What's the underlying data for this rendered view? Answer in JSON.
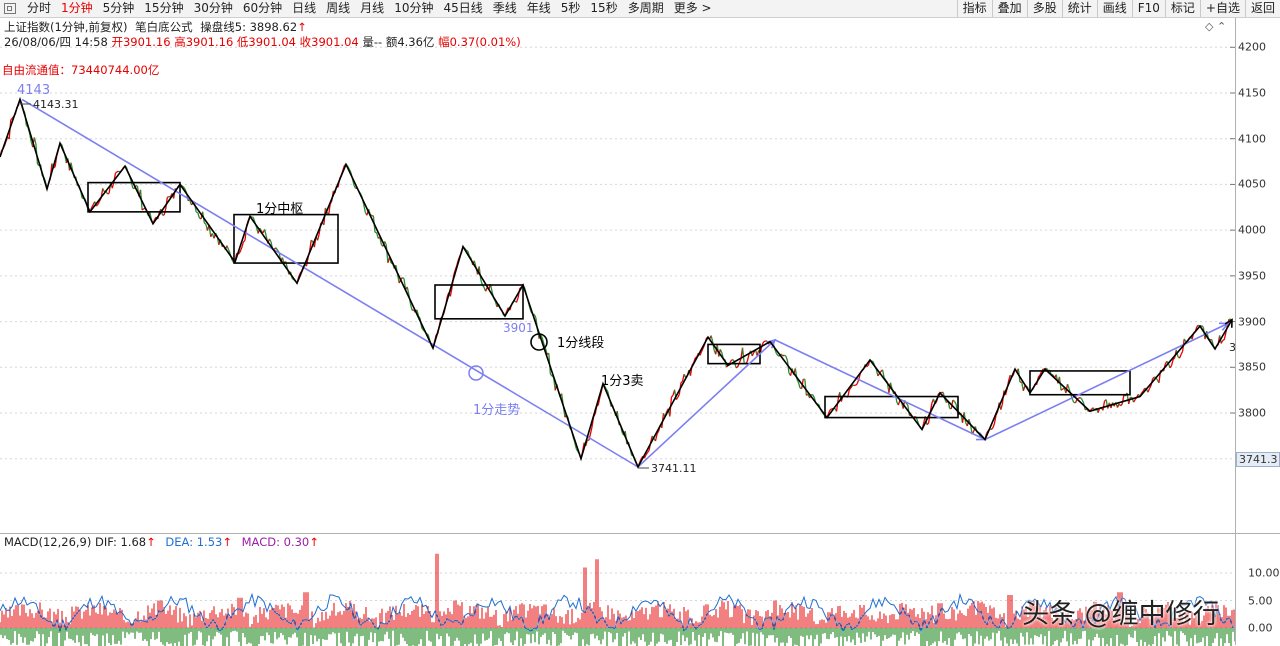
{
  "toolbar": {
    "period_tabs": [
      {
        "label": "分时"
      },
      {
        "label": "1分钟",
        "active": true
      },
      {
        "label": "5分钟"
      },
      {
        "label": "15分钟"
      },
      {
        "label": "30分钟"
      },
      {
        "label": "60分钟"
      },
      {
        "label": "日线"
      },
      {
        "label": "周线"
      },
      {
        "label": "月线"
      },
      {
        "label": "10分钟"
      },
      {
        "label": "45日线"
      },
      {
        "label": "季线"
      },
      {
        "label": "年线"
      },
      {
        "label": "5秒"
      },
      {
        "label": "15秒"
      },
      {
        "label": "多周期"
      },
      {
        "label": "更多 >"
      }
    ],
    "right_tools": [
      {
        "label": "指标"
      },
      {
        "label": "叠加"
      },
      {
        "label": "多股"
      },
      {
        "label": "统计"
      },
      {
        "label": "画线"
      },
      {
        "label": "F10"
      },
      {
        "label": "标记"
      },
      {
        "label": "+自选"
      },
      {
        "label": "返回"
      }
    ]
  },
  "header": {
    "symbol": "上证指数(1分钟,前复权)",
    "indicator": "笔白底公式",
    "ma5_label": "操盘线5: 3898.62",
    "ma5_arrow": "↑",
    "datetime": "26/08/06/四 14:58",
    "open_label": "开",
    "open": "3901.16",
    "high_label": "高",
    "high": "3901.16",
    "low_label": "低",
    "low": "3901.04",
    "close_label": "收",
    "close": "3901.04",
    "volume": "量--",
    "amount": "额4.36亿",
    "change_label": "幅",
    "change": "0.37(0.01%)",
    "float_value": "自由流通值：73440744.00亿",
    "corner_icons": "◇ ⌃"
  },
  "price_axis": {
    "ticks": [
      "4200",
      "4150",
      "4100",
      "4050",
      "4000",
      "3950",
      "3900",
      "3850",
      "3800"
    ],
    "current_price": "3741.3"
  },
  "annotations": {
    "high_label_blue": "4143",
    "high_label": "4143.31",
    "low_label": "3741.11",
    "label_3901": "3901",
    "label_zhongshu": "1分中枢",
    "label_xianduan": "1分线段",
    "label_3mai": "1分3卖",
    "label_zoushi": "1分走势",
    "label_right_edge": "3"
  },
  "macd": {
    "title": "MACD(12,26,9)",
    "dif": "DIF: 1.68",
    "dea": "DEA: 1.53",
    "macd": "MACD: 0.30",
    "arrow": "↑",
    "ticks": [
      "10.00",
      "5.00",
      "0.00"
    ]
  },
  "watermark": "头条 @缠中修行",
  "colors": {
    "up": "#e60000",
    "down": "#007a00",
    "trend_line": "#7b7ff0",
    "dea_line": "#1f6fd0",
    "stroke_line": "#000000",
    "macd_purple": "#9a1fa5"
  },
  "chart_data": {
    "type": "candlestick-line",
    "ylim": [
      3720,
      4215
    ],
    "stroke_points": [
      {
        "x": 0,
        "y": 4080
      },
      {
        "x": 20,
        "y": 4143
      },
      {
        "x": 47,
        "y": 4045
      },
      {
        "x": 60,
        "y": 4095
      },
      {
        "x": 90,
        "y": 4020
      },
      {
        "x": 125,
        "y": 4070
      },
      {
        "x": 153,
        "y": 4007
      },
      {
        "x": 180,
        "y": 4050
      },
      {
        "x": 235,
        "y": 3965
      },
      {
        "x": 250,
        "y": 4015
      },
      {
        "x": 297,
        "y": 3942
      },
      {
        "x": 346,
        "y": 4072
      },
      {
        "x": 433,
        "y": 3871
      },
      {
        "x": 463,
        "y": 3982
      },
      {
        "x": 505,
        "y": 3906
      },
      {
        "x": 523,
        "y": 3940
      },
      {
        "x": 581,
        "y": 3750
      },
      {
        "x": 603,
        "y": 3832
      },
      {
        "x": 638,
        "y": 3741
      },
      {
        "x": 708,
        "y": 3883
      },
      {
        "x": 728,
        "y": 3852
      },
      {
        "x": 770,
        "y": 3878
      },
      {
        "x": 827,
        "y": 3795
      },
      {
        "x": 870,
        "y": 3858
      },
      {
        "x": 922,
        "y": 3782
      },
      {
        "x": 940,
        "y": 3822
      },
      {
        "x": 985,
        "y": 3771
      },
      {
        "x": 1015,
        "y": 3848
      },
      {
        "x": 1030,
        "y": 3822
      },
      {
        "x": 1045,
        "y": 3848
      },
      {
        "x": 1090,
        "y": 3802
      },
      {
        "x": 1140,
        "y": 3818
      },
      {
        "x": 1200,
        "y": 3895
      },
      {
        "x": 1215,
        "y": 3870
      },
      {
        "x": 1232,
        "y": 3902
      }
    ],
    "trend_lines": [
      [
        {
          "x": 22,
          "y": 4143
        },
        {
          "x": 638,
          "y": 3741
        }
      ],
      [
        {
          "x": 638,
          "y": 3741
        },
        {
          "x": 775,
          "y": 3880
        }
      ],
      [
        {
          "x": 775,
          "y": 3880
        },
        {
          "x": 985,
          "y": 3771
        }
      ],
      [
        {
          "x": 985,
          "y": 3771
        },
        {
          "x": 1228,
          "y": 3898
        }
      ]
    ],
    "zhongshu_boxes": [
      {
        "x1": 88,
        "x2": 180,
        "y_low": 4020,
        "y_high": 4052
      },
      {
        "x1": 234,
        "x2": 338,
        "y_low": 3964,
        "y_high": 4017
      },
      {
        "x1": 435,
        "x2": 523,
        "y_low": 3903,
        "y_high": 3940
      },
      {
        "x1": 708,
        "x2": 760,
        "y_low": 3854,
        "y_high": 3875
      },
      {
        "x1": 825,
        "x2": 958,
        "y_low": 3795,
        "y_high": 3818
      },
      {
        "x1": 1030,
        "x2": 1130,
        "y_low": 3820,
        "y_high": 3846
      }
    ],
    "macd_ylim": [
      -2,
      13
    ]
  }
}
